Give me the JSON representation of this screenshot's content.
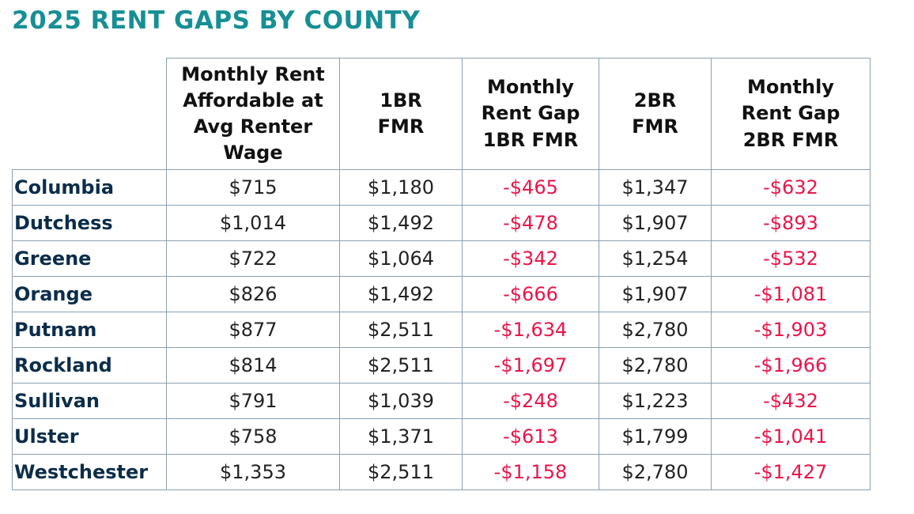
{
  "chart_data": {
    "type": "table",
    "title": "2025 RENT GAPS BY COUNTY",
    "columns": [
      {
        "key": "county",
        "label": ""
      },
      {
        "key": "affordable",
        "label": "Monthly Rent Affordable at Avg Renter Wage",
        "lines": [
          "Monthly Rent",
          "Affordable at",
          "Avg Renter",
          "Wage"
        ]
      },
      {
        "key": "fmr_1br",
        "label": "1BR FMR",
        "lines": [
          "1BR",
          "FMR"
        ]
      },
      {
        "key": "gap_1br",
        "label": "Monthly Rent Gap 1BR FMR",
        "lines": [
          "Monthly",
          "Rent Gap",
          "1BR FMR"
        ]
      },
      {
        "key": "fmr_2br",
        "label": "2BR FMR",
        "lines": [
          "2BR",
          "FMR"
        ]
      },
      {
        "key": "gap_2br",
        "label": "Monthly Rent Gap 2BR FMR",
        "lines": [
          "Monthly",
          "Rent Gap",
          "2BR FMR"
        ]
      }
    ],
    "rows": [
      {
        "county": "Columbia",
        "affordable": "$715",
        "fmr_1br": "$1,180",
        "gap_1br": "-$465",
        "fmr_2br": "$1,347",
        "gap_2br": "-$632"
      },
      {
        "county": "Dutchess",
        "affordable": "$1,014",
        "fmr_1br": "$1,492",
        "gap_1br": "-$478",
        "fmr_2br": "$1,907",
        "gap_2br": "-$893"
      },
      {
        "county": "Greene",
        "affordable": "$722",
        "fmr_1br": "$1,064",
        "gap_1br": "-$342",
        "fmr_2br": "$1,254",
        "gap_2br": "-$532"
      },
      {
        "county": "Orange",
        "affordable": "$826",
        "fmr_1br": "$1,492",
        "gap_1br": "-$666",
        "fmr_2br": "$1,907",
        "gap_2br": "-$1,081"
      },
      {
        "county": "Putnam",
        "affordable": "$877",
        "fmr_1br": "$2,511",
        "gap_1br": "-$1,634",
        "fmr_2br": "$2,780",
        "gap_2br": "-$1,903"
      },
      {
        "county": "Rockland",
        "affordable": "$814",
        "fmr_1br": "$2,511",
        "gap_1br": "-$1,697",
        "fmr_2br": "$2,780",
        "gap_2br": "-$1,966"
      },
      {
        "county": "Sullivan",
        "affordable": "$791",
        "fmr_1br": "$1,039",
        "gap_1br": "-$248",
        "fmr_2br": "$1,223",
        "gap_2br": "-$432"
      },
      {
        "county": "Ulster",
        "affordable": "$758",
        "fmr_1br": "$1,371",
        "gap_1br": "-$613",
        "fmr_2br": "$1,799",
        "gap_2br": "-$1,041"
      },
      {
        "county": "Westchester",
        "affordable": "$1,353",
        "fmr_1br": "$2,511",
        "gap_1br": "-$1,158",
        "fmr_2br": "$2,780",
        "gap_2br": "-$1,427"
      }
    ]
  },
  "colors": {
    "title": "#168f95",
    "county_text": "#0b2d4a",
    "value_text": "#222222",
    "gap_text": "#e8154a",
    "grid": "#8aa0b2"
  }
}
